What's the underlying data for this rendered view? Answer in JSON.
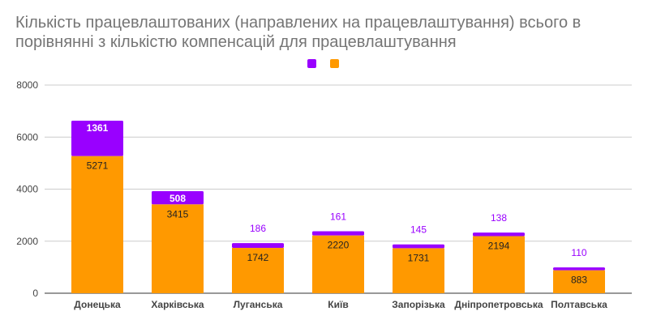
{
  "chart_data": {
    "type": "bar",
    "stacked": true,
    "title_lines": [
      "Кількість працевлаштованих (направлених на працевлаштування) всього в",
      "порівнянні з кількістю компенсацій для працевлаштування"
    ],
    "categories": [
      "Донецька",
      "Харківська",
      "Луганська",
      "Київ",
      "Запорізька",
      "Дніпропетровська",
      "Полтавська"
    ],
    "series": [
      {
        "name": "",
        "color": "#ff9900",
        "values": [
          5271,
          3415,
          1742,
          2220,
          1731,
          2194,
          883
        ]
      },
      {
        "name": "",
        "color": "#9900ff",
        "values": [
          1361,
          508,
          186,
          161,
          145,
          138,
          110
        ]
      }
    ],
    "yticks": [
      0,
      2000,
      4000,
      6000,
      8000
    ],
    "ylim": [
      0,
      8000
    ],
    "xlabel": "",
    "ylabel": "",
    "legend": "top-center",
    "grid": true
  }
}
